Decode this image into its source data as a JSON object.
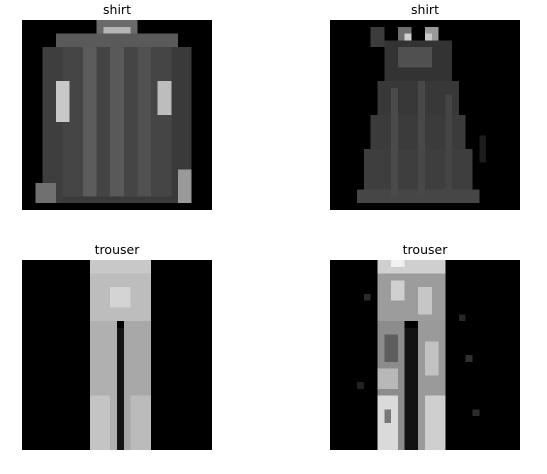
{
  "figure": {
    "panels": [
      {
        "title": "shirt",
        "image": "grayscale-long-sleeve-shirt"
      },
      {
        "title": "shirt",
        "image": "grayscale-sleeveless-dress-top"
      },
      {
        "title": "trouser",
        "image": "grayscale-trouser"
      },
      {
        "title": "trouser",
        "image": "grayscale-trouser-speckled"
      }
    ],
    "background_color": "#ffffff",
    "image_background_color": "#000000"
  }
}
